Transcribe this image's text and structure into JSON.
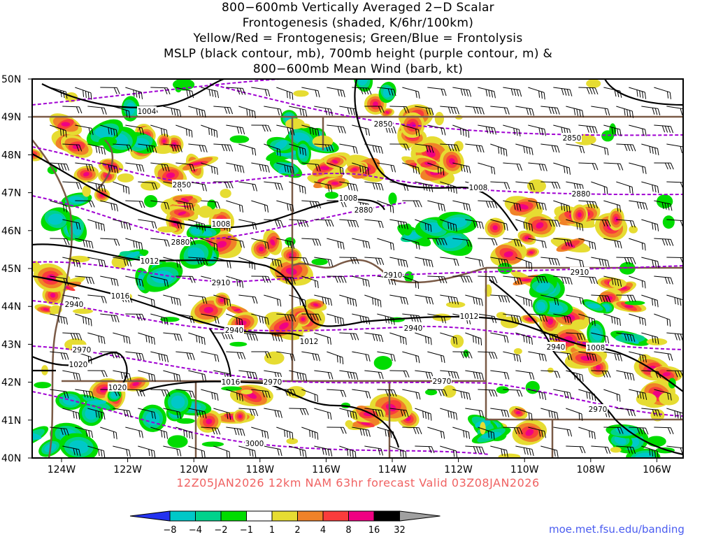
{
  "title_lines": [
    "800−600mb Vertically Averaged 2−D Scalar",
    "Frontogenesis (shaded, K/6hr/100km)",
    "Yellow/Red = Frontogenesis;  Green/Blue = Frontolysis",
    "MSLP (black contour, mb), 700mb height (purple contour, m) &",
    "800−600mb Mean Wind (barb, kt)"
  ],
  "lat_labels": [
    "50N",
    "49N",
    "48N",
    "47N",
    "46N",
    "45N",
    "44N",
    "43N",
    "42N",
    "41N",
    "40N"
  ],
  "lon_labels": [
    "124W",
    "122W",
    "120W",
    "118W",
    "116W",
    "114W",
    "112W",
    "110W",
    "108W",
    "106W"
  ],
  "valid_line": "12Z05JAN2026  12km  NAM  63hr  forecast  Valid  03Z08JAN2026",
  "colorbar": {
    "ticks": [
      "−8",
      "−4",
      "−2",
      "−1",
      "1",
      "2",
      "4",
      "8",
      "16",
      "32"
    ],
    "colors": [
      "#2433f0",
      "#00c8c8",
      "#00d28c",
      "#00dc00",
      "#ffffff",
      "#e6dc32",
      "#f08228",
      "#fa3c3c",
      "#f00082",
      "#000000",
      "#a0a0a0"
    ]
  },
  "mslp_labels": [
    "1004",
    "1008",
    "1008",
    "1008",
    "1012",
    "1016",
    "1012",
    "1012",
    "1020",
    "1020",
    "1016",
    "1008"
  ],
  "height_labels": [
    "2850",
    "2850",
    "2850",
    "2880",
    "2880",
    "2880",
    "2910",
    "2910",
    "2910",
    "2940",
    "2940",
    "2940",
    "2940",
    "2970",
    "2970",
    "2970",
    "2970",
    "3000"
  ],
  "colors": {
    "mslp": "#000000",
    "height": "#a000d2",
    "borders": "#7a5a46",
    "valid": "#f06262",
    "url": "#4a5cf0"
  },
  "credit": "moe.met.fsu.edu/banding"
}
